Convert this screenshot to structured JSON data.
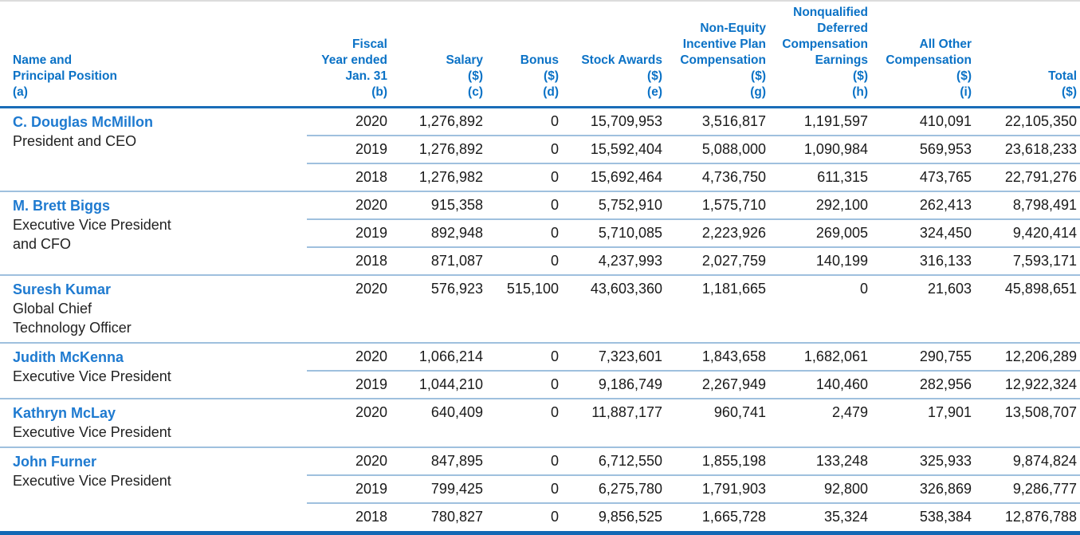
{
  "colors": {
    "header_text": "#0b72c6",
    "name_text": "#1e7ad0",
    "rule_thick": "#1a6db8",
    "rule_thin": "#9fc0de",
    "bottom_bar": "#1268b4",
    "top_line": "#dcdcdc",
    "body_text": "#1a1a1a"
  },
  "table": {
    "header": {
      "name_col_lines": [
        "Name and",
        "Principal Position",
        "(a)"
      ],
      "value_cols": [
        {
          "key": "fiscal_year",
          "lines": [
            "Fiscal",
            "Year ended",
            "Jan. 31",
            "(b)"
          ]
        },
        {
          "key": "salary",
          "lines": [
            "Salary",
            "($)",
            "(c)"
          ]
        },
        {
          "key": "bonus",
          "lines": [
            "Bonus",
            "($)",
            "(d)"
          ]
        },
        {
          "key": "stock_awards",
          "lines": [
            "Stock Awards",
            "($)",
            "(e)"
          ]
        },
        {
          "key": "non_equity_incentive",
          "lines": [
            "Non-Equity",
            "Incentive Plan",
            "Compensation",
            "($)",
            "(g)"
          ]
        },
        {
          "key": "nonqualified_deferred",
          "lines": [
            "Nonqualified",
            "Deferred",
            "Compensation",
            "Earnings",
            "($)",
            "(h)"
          ]
        },
        {
          "key": "all_other",
          "lines": [
            "All Other",
            "Compensation",
            "($)",
            "(i)"
          ]
        },
        {
          "key": "total",
          "lines": [
            "Total",
            "($)"
          ]
        }
      ]
    },
    "groups": [
      {
        "name": "C. Douglas McMillon",
        "position_lines": [
          "President and CEO"
        ],
        "rows": [
          {
            "values": [
              "2020",
              "1,276,892",
              "0",
              "15,709,953",
              "3,516,817",
              "1,191,597",
              "410,091",
              "22,105,350"
            ]
          },
          {
            "values": [
              "2019",
              "1,276,892",
              "0",
              "15,592,404",
              "5,088,000",
              "1,090,984",
              "569,953",
              "23,618,233"
            ]
          },
          {
            "values": [
              "2018",
              "1,276,982",
              "0",
              "15,692,464",
              "4,736,750",
              "611,315",
              "473,765",
              "22,791,276"
            ]
          }
        ]
      },
      {
        "name": "M. Brett Biggs",
        "position_lines": [
          "Executive Vice President",
          "and CFO"
        ],
        "rows": [
          {
            "values": [
              "2020",
              "915,358",
              "0",
              "5,752,910",
              "1,575,710",
              "292,100",
              "262,413",
              "8,798,491"
            ]
          },
          {
            "values": [
              "2019",
              "892,948",
              "0",
              "5,710,085",
              "2,223,926",
              "269,005",
              "324,450",
              "9,420,414"
            ]
          },
          {
            "values": [
              "2018",
              "871,087",
              "0",
              "4,237,993",
              "2,027,759",
              "140,199",
              "316,133",
              "7,593,171"
            ]
          }
        ]
      },
      {
        "name": "Suresh Kumar",
        "position_lines": [
          "Global Chief",
          "Technology Officer"
        ],
        "rows": [
          {
            "values": [
              "2020",
              "576,923",
              "515,100",
              "43,603,360",
              "1,181,665",
              "0",
              "21,603",
              "45,898,651"
            ]
          }
        ]
      },
      {
        "name": "Judith McKenna",
        "position_lines": [
          "Executive Vice President"
        ],
        "rows": [
          {
            "values": [
              "2020",
              "1,066,214",
              "0",
              "7,323,601",
              "1,843,658",
              "1,682,061",
              "290,755",
              "12,206,289"
            ]
          },
          {
            "values": [
              "2019",
              "1,044,210",
              "0",
              "9,186,749",
              "2,267,949",
              "140,460",
              "282,956",
              "12,922,324"
            ]
          }
        ]
      },
      {
        "name": "Kathryn McLay",
        "position_lines": [
          "Executive Vice President"
        ],
        "rows": [
          {
            "values": [
              "2020",
              "640,409",
              "0",
              "11,887,177",
              "960,741",
              "2,479",
              "17,901",
              "13,508,707"
            ]
          }
        ]
      },
      {
        "name": "John Furner",
        "position_lines": [
          "Executive Vice President"
        ],
        "rows": [
          {
            "values": [
              "2020",
              "847,895",
              "0",
              "6,712,550",
              "1,855,198",
              "133,248",
              "325,933",
              "9,874,824"
            ]
          },
          {
            "values": [
              "2019",
              "799,425",
              "0",
              "6,275,780",
              "1,791,903",
              "92,800",
              "326,869",
              "9,286,777"
            ]
          },
          {
            "values": [
              "2018",
              "780,827",
              "0",
              "9,856,525",
              "1,665,728",
              "35,324",
              "538,384",
              "12,876,788"
            ]
          }
        ]
      }
    ]
  }
}
